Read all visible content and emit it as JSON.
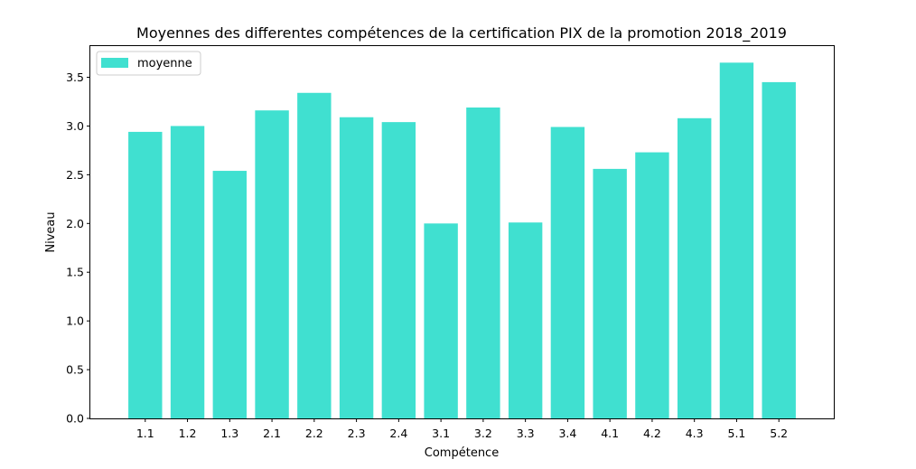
{
  "chart_data": {
    "type": "bar",
    "title": "Moyennes des differentes compétences de la certification PIX de la promotion 2018_2019",
    "xlabel": "Compétence",
    "ylabel": "Niveau",
    "categories": [
      "1.1",
      "1.2",
      "1.3",
      "2.1",
      "2.2",
      "2.3",
      "2.4",
      "3.1",
      "3.2",
      "3.3",
      "3.4",
      "4.1",
      "4.2",
      "4.3",
      "5.1",
      "5.2"
    ],
    "series": [
      {
        "name": "moyenne",
        "color": "#40e0d0",
        "values": [
          2.94,
          3.0,
          2.54,
          3.16,
          3.34,
          3.09,
          3.04,
          2.0,
          3.19,
          2.01,
          2.99,
          2.56,
          2.73,
          3.08,
          3.65,
          3.45
        ]
      }
    ],
    "ylim": [
      0,
      3.82
    ],
    "yticks": [
      "0.0",
      "0.5",
      "1.0",
      "1.5",
      "2.0",
      "2.5",
      "3.0",
      "3.5"
    ],
    "legend": "top-left",
    "grid": false
  }
}
